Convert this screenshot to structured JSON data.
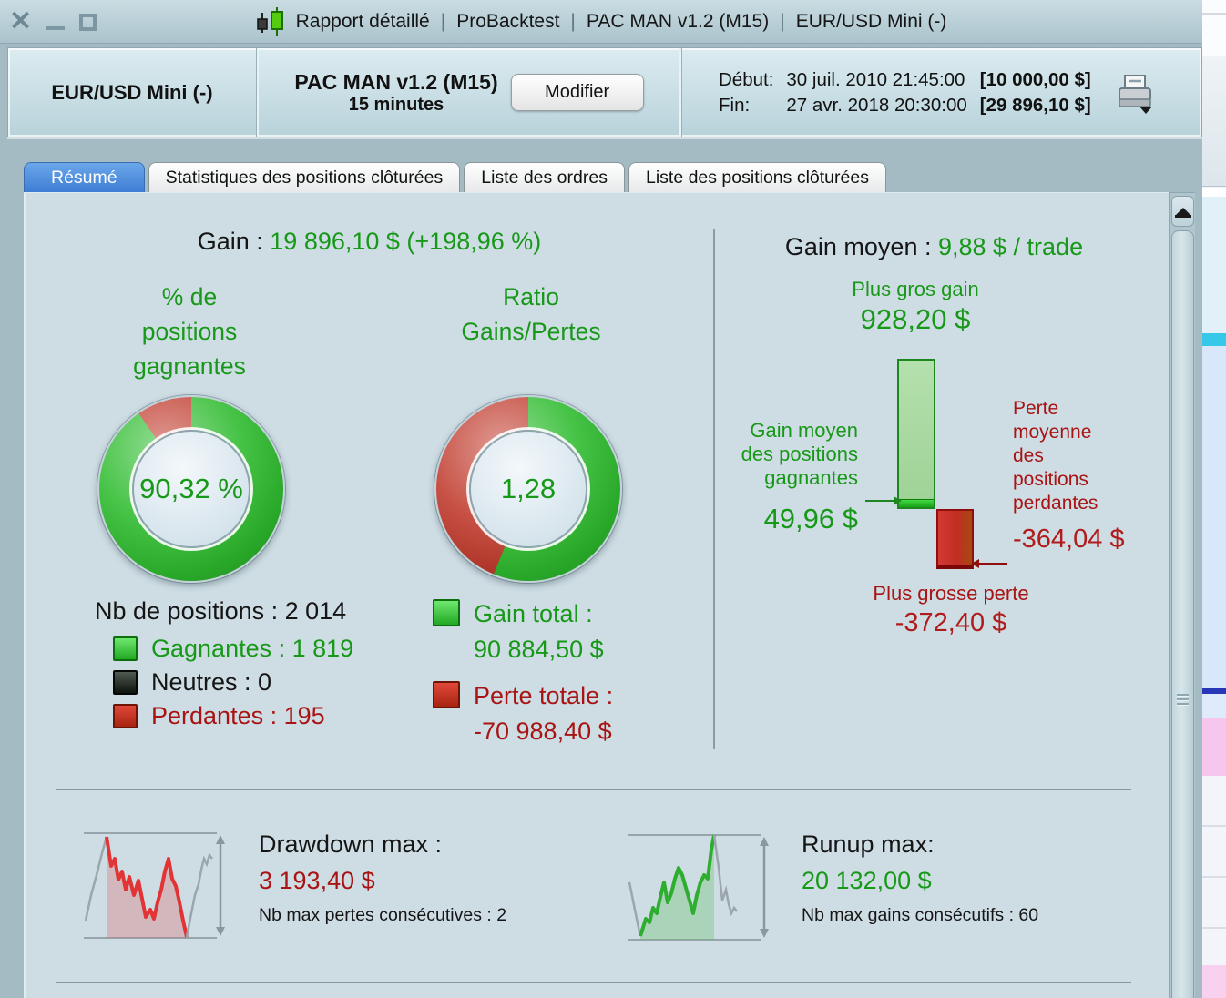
{
  "colors": {
    "green_text": "#189818",
    "red_text": "#a81414",
    "donut_green": "#2dbb2d",
    "donut_red": "#c0392b",
    "panel_bg": "#cedde4",
    "active_tab_blue": "#3d7cd4"
  },
  "title_bar": {
    "separator": "|",
    "parts": [
      "Rapport détaillé",
      "ProBacktest",
      "PAC MAN v1.2 (M15)",
      "EUR/USD Mini (-)"
    ]
  },
  "header": {
    "instrument": "EUR/USD Mini (-)",
    "strategy_name": "PAC MAN v1.2 (M15)",
    "timeframe": "15 minutes",
    "modify_button": "Modifier",
    "start_label": "Début:",
    "start_datetime": "30 juil. 2010 21:45:00",
    "start_capital": "[10 000,00 $]",
    "end_label": "Fin:",
    "end_datetime": "27 avr. 2018 20:30:00",
    "end_capital": "[29 896,10 $]"
  },
  "tabs": [
    {
      "label": "Résumé",
      "active": true
    },
    {
      "label": "Statistiques des positions clôturées",
      "active": false
    },
    {
      "label": "Liste des ordres",
      "active": false
    },
    {
      "label": "Liste des positions clôturées",
      "active": false
    }
  ],
  "summary": {
    "gain_label": "Gain : ",
    "gain_value": "19 896,10 $ (+198,96 %)",
    "winpct_title_lines": [
      "% de",
      "positions",
      "gagnantes"
    ],
    "ratio_title_lines": [
      "Ratio",
      "Gains/Pertes"
    ],
    "winpct_value": "90,32 %",
    "ratio_value": "1,28",
    "nb_positions": "Nb de positions : 2 014",
    "legend": [
      {
        "label": "Gagnantes : 1 819"
      },
      {
        "label": "Neutres : 0"
      },
      {
        "label": "Perdantes : 195"
      }
    ],
    "gain_total_label": "Gain total :",
    "gain_total_value": "90 884,50 $",
    "perte_totale_label": "Perte totale :",
    "perte_totale_value": "-70 988,40 $"
  },
  "average": {
    "title_label": "Gain moyen : ",
    "title_value": "9,88 $ / trade",
    "plus_gros_gain_label": "Plus gros gain",
    "plus_gros_gain_value": "928,20 $",
    "gain_moyen_gagnantes_lines": [
      "Gain moyen",
      "des positions",
      "gagnantes"
    ],
    "gain_moyen_gagnantes_value": "49,96 $",
    "perte_moyenne_lines": [
      "Perte",
      "moyenne",
      "des",
      "positions",
      "perdantes"
    ],
    "perte_moyenne_value": "-364,04 $",
    "plus_grosse_perte_label": "Plus grosse perte",
    "plus_grosse_perte_value": "-372,40 $"
  },
  "bottom": {
    "drawdown_label": "Drawdown max :",
    "drawdown_value": "3 193,40 $",
    "drawdown_sub": "Nb max pertes consécutives : 2",
    "runup_label": "Runup max:",
    "runup_value": "20 132,00 $",
    "runup_sub": "Nb max gains consécutifs : 60"
  },
  "chart_data": [
    {
      "type": "pie",
      "title": "% de positions gagnantes",
      "labels": [
        "Gagnantes",
        "Perdantes"
      ],
      "values": [
        90.32,
        9.68
      ],
      "counts": {
        "total": 2014,
        "gagnantes": 1819,
        "neutres": 0,
        "perdantes": 195
      },
      "center_label": "90,32 %",
      "colors": [
        "#2dbb2d",
        "#c0392b"
      ]
    },
    {
      "type": "pie",
      "title": "Ratio Gains/Pertes",
      "ratio": 1.28,
      "labels": [
        "Gains",
        "Pertes"
      ],
      "values": [
        56.14,
        43.86
      ],
      "center_label": "1,28",
      "colors": [
        "#2dbb2d",
        "#c0392b"
      ]
    },
    {
      "type": "bar",
      "title": "Gain moyen : 9,88 $ / trade",
      "categories": [
        "Plus gros gain",
        "Gain moyen des positions gagnantes",
        "Perte moyenne des positions perdantes",
        "Plus grosse perte"
      ],
      "values": [
        928.2,
        49.96,
        -364.04,
        -372.4
      ],
      "unit": "$",
      "gain_total": 90884.5,
      "perte_totale": -70988.4,
      "gain_moyen_par_trade": 9.88
    },
    {
      "type": "line",
      "title": "Drawdown max",
      "value": 3193.4,
      "nb_max_pertes_consecutives": 2
    },
    {
      "type": "line",
      "title": "Runup max",
      "value": 20132.0,
      "nb_max_gains_consecutifs": 60
    }
  ]
}
